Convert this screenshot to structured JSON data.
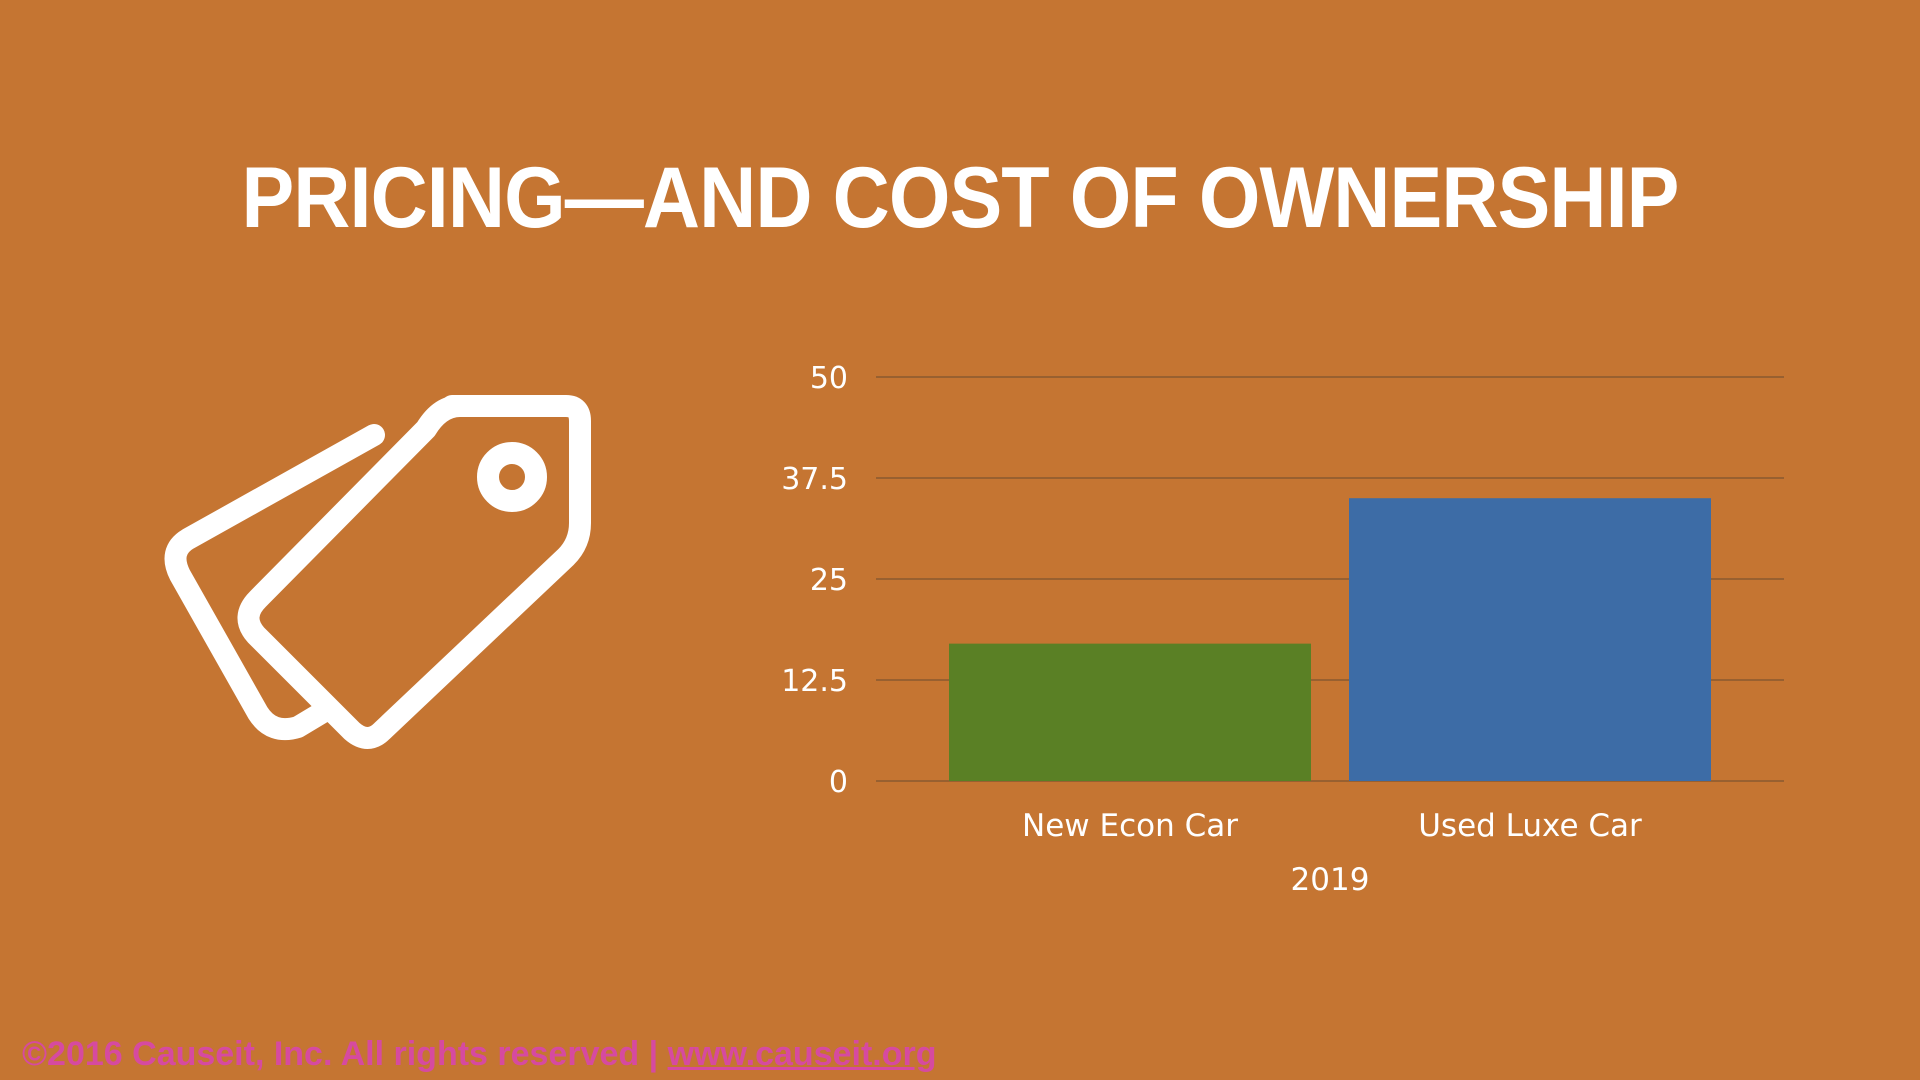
{
  "colors": {
    "background": "#c57532",
    "title": "#ffffff",
    "icon": "#ffffff",
    "gridline": "#8a5a30",
    "footer": "#d64aa0"
  },
  "slide": {
    "title": "PRICING—AND COST OF OWNERSHIP",
    "icon": "price-tag-icon"
  },
  "footer": {
    "copyright": "©2016 Causeit, Inc. All rights reserved | ",
    "url": "www.causeit.org"
  },
  "chart_data": {
    "type": "bar",
    "categories": [
      "New Econ Car",
      "Used Luxe Car"
    ],
    "group_label": "2019",
    "series": [
      {
        "values": [
          17,
          35
        ],
        "colors": [
          "#5a8025",
          "#3d6ca6"
        ]
      }
    ],
    "ylim": [
      0,
      50
    ],
    "yticks": [
      0,
      12.5,
      25,
      37.5,
      50
    ],
    "ytick_labels": [
      "0",
      "12.5",
      "25",
      "37.5",
      "50"
    ],
    "grid": true,
    "legend": "none"
  }
}
